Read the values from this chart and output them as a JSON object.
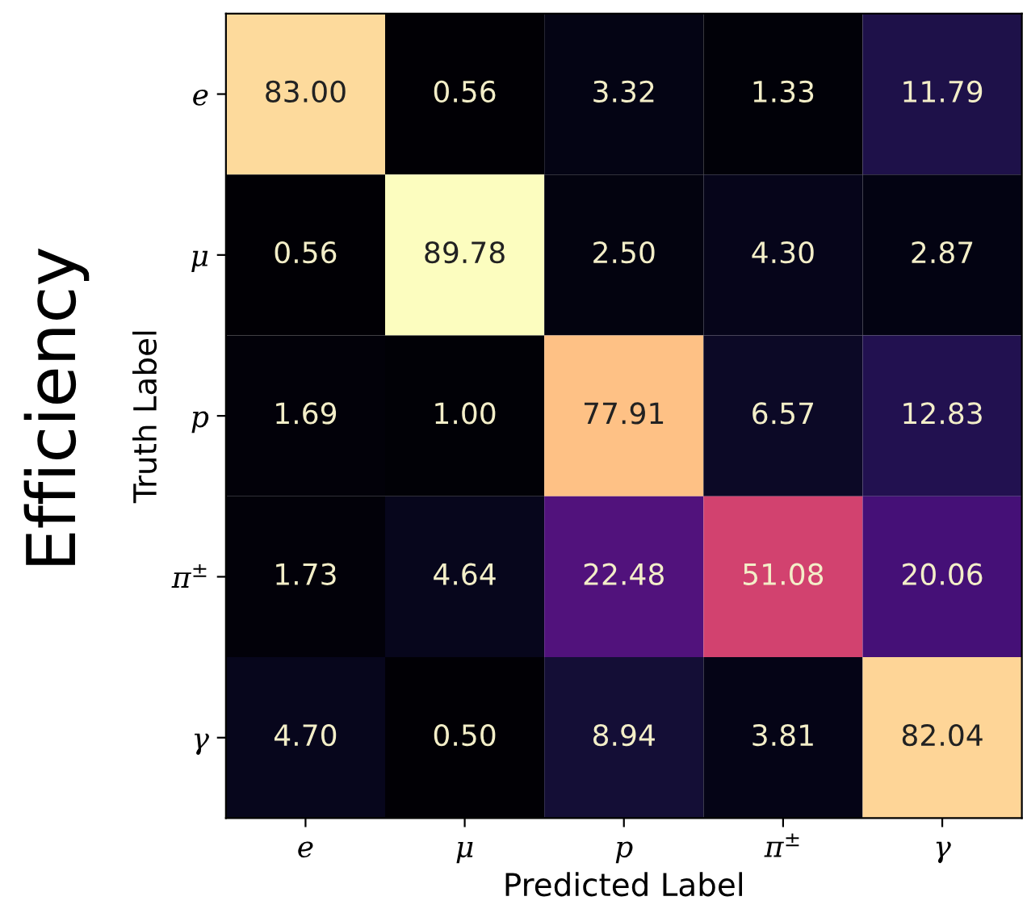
{
  "chart_data": {
    "type": "heatmap",
    "categories": [
      "e",
      "μ",
      "p",
      "π$^{±}$",
      "γ"
    ],
    "y_categories": [
      "e",
      "μ",
      "p",
      "π$^{±}$",
      "γ"
    ],
    "xlabel": "Predicted Label",
    "ylabel": "Truth Label",
    "annotations": [
      "Efficiency"
    ],
    "cells": [
      [
        83.0,
        0.56,
        3.32,
        1.33,
        11.79
      ],
      [
        0.56,
        89.78,
        2.5,
        4.3,
        2.87
      ],
      [
        1.69,
        1.0,
        77.91,
        6.57,
        12.83
      ],
      [
        1.73,
        4.64,
        22.48,
        51.08,
        20.06
      ],
      [
        4.7,
        0.5,
        8.94,
        3.81,
        82.04
      ]
    ],
    "cell_labels": [
      [
        "83.00",
        "0.56",
        "3.32",
        "1.33",
        "11.79"
      ],
      [
        "0.56",
        "89.78",
        "2.50",
        "4.30",
        "2.87"
      ],
      [
        "1.69",
        "1.00",
        "77.91",
        "6.57",
        "12.83"
      ],
      [
        "1.73",
        "4.64",
        "22.48",
        "51.08",
        "20.06"
      ],
      [
        "4.70",
        "0.50",
        "8.94",
        "3.81",
        "82.04"
      ]
    ]
  }
}
